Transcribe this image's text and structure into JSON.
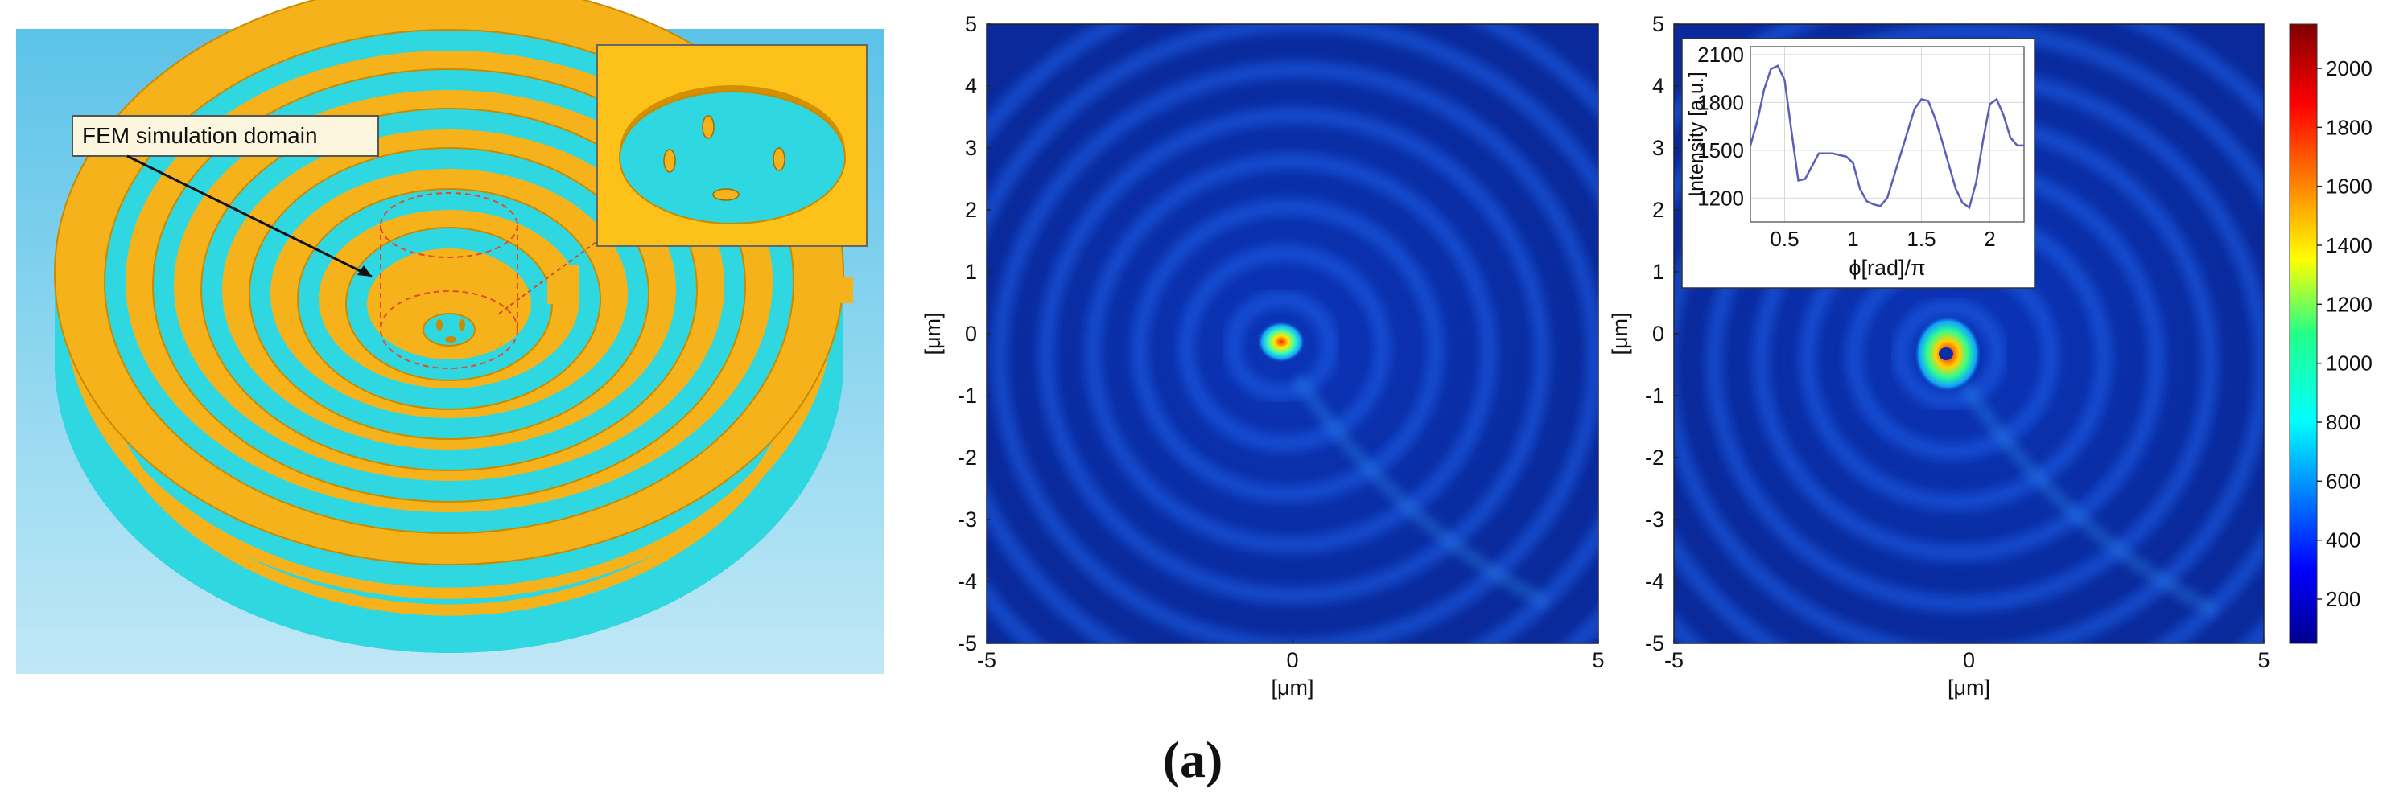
{
  "figure": {
    "panel_label": "(a)",
    "schematic": {
      "callout_label": "FEM simulation domain"
    },
    "colors": {
      "gold": "#f5b21a",
      "gold_dark": "#d48f00",
      "cyan": "#2fd8e0",
      "cyan_dark": "#1fb9c6",
      "sky_top": "#5bc3e8",
      "sky_bottom": "#bfe7f6",
      "map_bg": "#0a2ea8",
      "ring": "#1e5ee6"
    }
  },
  "chart_data": [
    {
      "type": "heatmap",
      "title": "",
      "xlabel": "[μm]",
      "ylabel": "[μm]",
      "xlim": [
        -5,
        5
      ],
      "ylim": [
        -5,
        5
      ],
      "xticks": [
        "-5",
        "0",
        "5"
      ],
      "yticks": [
        "5",
        "4",
        "3",
        "2",
        "1",
        "0",
        "-1",
        "-2",
        "-3",
        "-4",
        "-5"
      ],
      "hotspot": {
        "x": -0.2,
        "y": -0.1,
        "peak_intensity": 1100
      },
      "ring_count": 7
    },
    {
      "type": "heatmap",
      "title": "",
      "xlabel": "[μm]",
      "ylabel": "[μm]",
      "xlim": [
        -5,
        5
      ],
      "ylim": [
        -5,
        5
      ],
      "xticks": [
        "-5",
        "0",
        "5"
      ],
      "yticks": [
        "5",
        "4",
        "3",
        "2",
        "1",
        "0",
        "-1",
        "-2",
        "-3",
        "-4",
        "-5"
      ],
      "hotspot": {
        "x": -0.3,
        "y": -0.3,
        "peak_intensity": 2100
      },
      "ring_count": 7,
      "colorbar": {
        "ticks": [
          "2000",
          "1800",
          "1600",
          "1400",
          "1200",
          "1000",
          "800",
          "600",
          "400",
          "200"
        ],
        "values": [
          2000,
          1800,
          1600,
          1400,
          1200,
          1000,
          800,
          600,
          400,
          200
        ],
        "range": [
          50,
          2150
        ]
      }
    },
    {
      "type": "line",
      "title": "",
      "xlabel": "ϕ[rad]/π",
      "ylabel": "Intensity [a.u.]",
      "xlim": [
        0.25,
        2.25
      ],
      "ylim": [
        1050,
        2150
      ],
      "xticks": [
        "0.5",
        "1",
        "1.5",
        "2"
      ],
      "xtick_values": [
        0.5,
        1,
        1.5,
        2
      ],
      "yticks": [
        "2100",
        "1800",
        "1500",
        "1200"
      ],
      "ytick_values": [
        2100,
        1800,
        1500,
        1200
      ],
      "grid": true,
      "series": [
        {
          "name": "intensity",
          "x": [
            0.25,
            0.3,
            0.35,
            0.4,
            0.45,
            0.5,
            0.55,
            0.6,
            0.65,
            0.7,
            0.75,
            0.8,
            0.85,
            0.9,
            0.95,
            1.0,
            1.05,
            1.1,
            1.15,
            1.2,
            1.25,
            1.3,
            1.35,
            1.4,
            1.45,
            1.5,
            1.55,
            1.6,
            1.65,
            1.7,
            1.75,
            1.8,
            1.85,
            1.9,
            1.95,
            2.0,
            2.05,
            2.1,
            2.15,
            2.2,
            2.25
          ],
          "values": [
            1530,
            1680,
            1880,
            2010,
            2030,
            1940,
            1620,
            1310,
            1320,
            1400,
            1480,
            1480,
            1480,
            1470,
            1460,
            1420,
            1260,
            1180,
            1160,
            1150,
            1200,
            1340,
            1480,
            1620,
            1760,
            1820,
            1810,
            1700,
            1560,
            1410,
            1260,
            1170,
            1140,
            1300,
            1560,
            1790,
            1820,
            1720,
            1580,
            1530,
            1530
          ]
        }
      ]
    }
  ]
}
